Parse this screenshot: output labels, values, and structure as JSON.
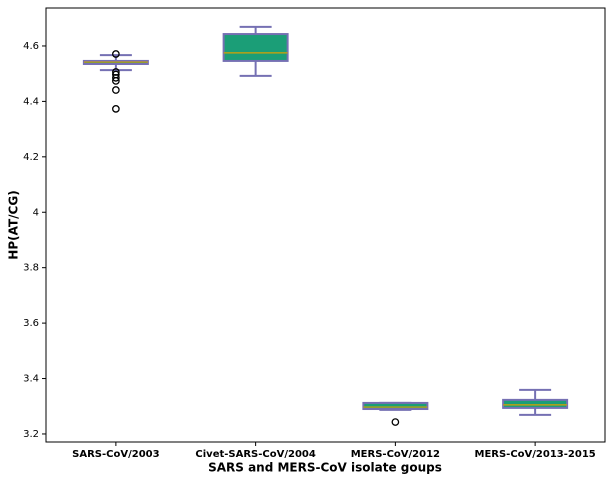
{
  "chart_data": {
    "type": "box",
    "x_label": "SARS and MERS-CoV isolate goups",
    "y_label": "HP(AT/CG)",
    "categories": [
      "SARS-CoV/2003",
      "Civet-SARS-CoV/2004",
      "MERS-CoV/2012",
      "MERS-CoV/2013-2015"
    ],
    "boxes": [
      {
        "min": 4.513,
        "q1": 4.535,
        "median": 4.542,
        "q3": 4.546,
        "max": 4.567,
        "outliers": [
          4.571,
          4.506,
          4.497,
          4.485,
          4.474,
          4.441,
          4.373
        ]
      },
      {
        "min": 4.492,
        "q1": 4.546,
        "median": 4.575,
        "q3": 4.643,
        "max": 4.669,
        "outliers": []
      },
      {
        "min": 3.287,
        "q1": 3.29,
        "median": 3.297,
        "q3": 3.312,
        "max": 3.312,
        "outliers": [
          3.243
        ]
      },
      {
        "min": 3.269,
        "q1": 3.294,
        "median": 3.305,
        "q3": 3.323,
        "max": 3.359,
        "outliers": []
      }
    ],
    "color": "#1b9e77",
    "edge_color": "#7570b3",
    "median_color": "#d9a000",
    "ylim": [
      3.171,
      4.737
    ],
    "yticks": [
      3.2,
      3.4,
      3.6,
      3.8,
      4.0,
      4.2,
      4.4,
      4.6
    ]
  }
}
